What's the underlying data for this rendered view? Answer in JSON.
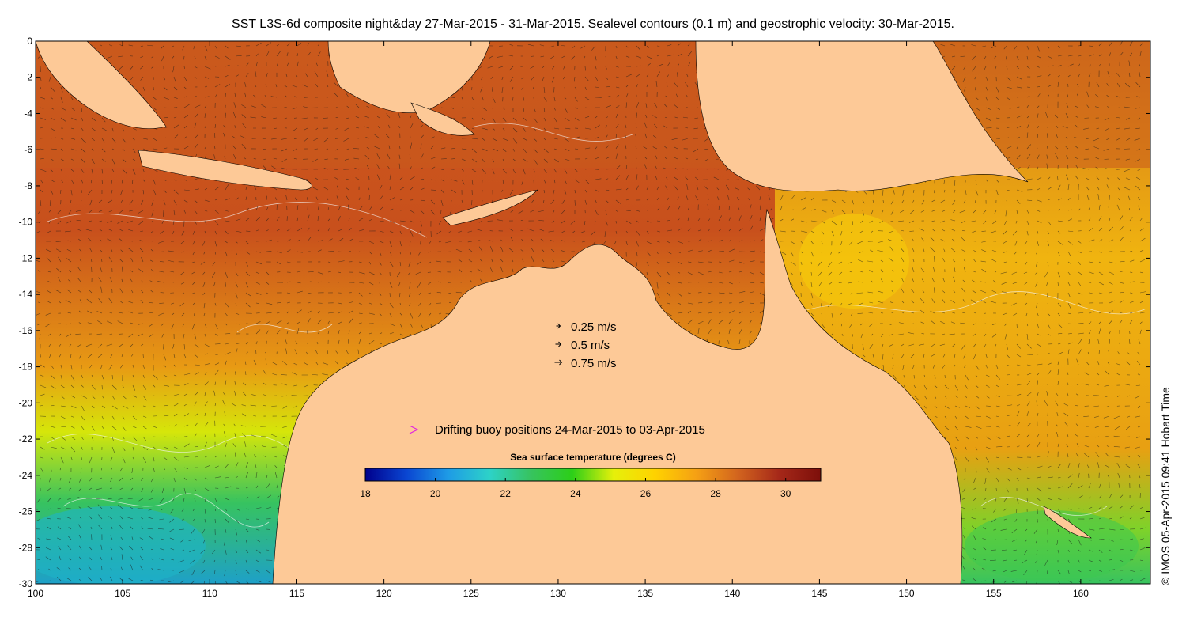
{
  "title": "SST L3S-6d composite night&day 27-Mar-2015 - 31-Mar-2015. Sealevel contours (0.1 m) and geostrophic velocity: 30-Mar-2015.",
  "credit": "© IMOS 05-Apr-2015 09:41 Hobart Time",
  "axes": {
    "x_ticks": [
      "100",
      "105",
      "110",
      "115",
      "120",
      "125",
      "130",
      "135",
      "140",
      "145",
      "150",
      "155",
      "160"
    ],
    "y_ticks": [
      "0",
      "-2",
      "-4",
      "-6",
      "-8",
      "-10",
      "-12",
      "-14",
      "-16",
      "-18",
      "-20",
      "-22",
      "-24",
      "-26",
      "-28",
      "-30"
    ],
    "lon_range": [
      100,
      164
    ],
    "lat_range": [
      -30,
      0
    ]
  },
  "velocity_legend": [
    {
      "label": "0.25 m/s",
      "speed": 0.25
    },
    {
      "label": "0.5 m/s",
      "speed": 0.5
    },
    {
      "label": "0.75 m/s",
      "speed": 0.75
    }
  ],
  "buoy_legend": "Drifting buoy positions 24-Mar-2015 to 03-Apr-2015",
  "colorbar": {
    "title": "Sea surface temperature (degrees C)",
    "range": [
      18,
      31
    ],
    "tick_labels": [
      "18",
      "20",
      "22",
      "24",
      "26",
      "28",
      "30"
    ]
  },
  "colors": {
    "land": "#fdc997",
    "buoy": "#e020e0",
    "sst_stops": [
      "#00008c",
      "#0a46d2",
      "#1e9be6",
      "#2dd2c8",
      "#37c35f",
      "#2ccf18",
      "#e6f00a",
      "#ffd200",
      "#f5a014",
      "#d2641e",
      "#a52819",
      "#7d0f0a"
    ]
  }
}
